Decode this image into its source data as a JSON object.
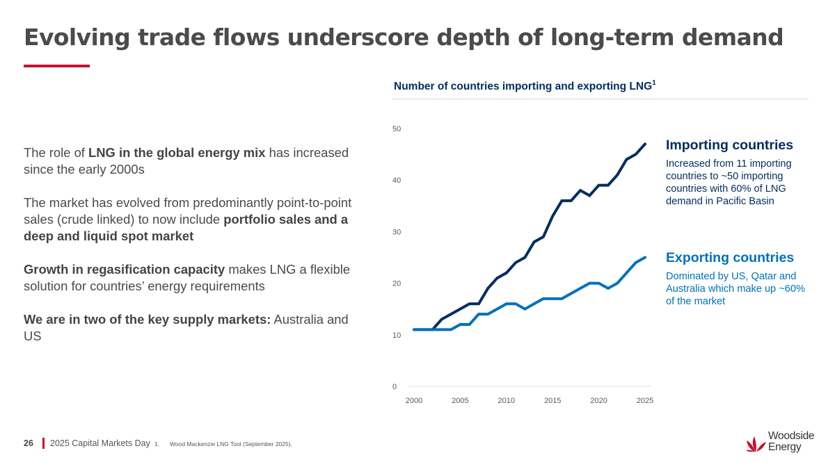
{
  "slide": {
    "title": "Evolving trade flows underscore depth of long-term demand",
    "page_number": "26",
    "event": "2025 Capital Markets Day",
    "footnote_number": "1.",
    "footnote_text": "Wood Mackenzie LNG Tool (September 2025).",
    "brand_color": "#c8102e"
  },
  "body": {
    "p1": {
      "a": "The role of ",
      "b": "LNG in the global energy mix",
      "c": " has increased since the early 2000s"
    },
    "p2": {
      "a": "The market has evolved from predominantly point-to-point sales (crude linked) to now include ",
      "b": "portfolio sales and a deep and liquid spot market"
    },
    "p3": {
      "b": "Growth in regasification capacity",
      "c": " makes LNG a flexible solution for countries’ energy requirements"
    },
    "p4": {
      "b": "We are in two of the key supply markets:",
      "c": " Australia and US"
    }
  },
  "callouts": {
    "importing": {
      "title": "Importing countries",
      "text": "Increased from 11 importing countries to ~50 importing countries with 60% of LNG demand in Pacific Basin"
    },
    "exporting": {
      "title": "Exporting countries",
      "text": "Dominated by US, Qatar and Australia which make up ~60% of the market"
    }
  },
  "logo": {
    "line1": "Woodside",
    "line2": "Energy"
  },
  "chart_data": {
    "type": "line",
    "title": "Number of countries importing and exporting LNG",
    "title_superscript": "1",
    "xlabel": "",
    "ylabel": "",
    "x": [
      2000,
      2001,
      2002,
      2003,
      2004,
      2005,
      2006,
      2007,
      2008,
      2009,
      2010,
      2011,
      2012,
      2013,
      2014,
      2015,
      2016,
      2017,
      2018,
      2019,
      2020,
      2021,
      2022,
      2023,
      2024,
      2025
    ],
    "xticks": [
      2000,
      2005,
      2010,
      2015,
      2020,
      2025
    ],
    "yticks": [
      0,
      10,
      20,
      30,
      40,
      50
    ],
    "xlim": [
      2000,
      2025
    ],
    "ylim": [
      0,
      50
    ],
    "grid": false,
    "legend": "right (callout text)",
    "series": [
      {
        "name": "Importing countries",
        "color": "#002d5f",
        "values": [
          11,
          11,
          11,
          13,
          14,
          15,
          16,
          16,
          19,
          21,
          22,
          24,
          25,
          28,
          29,
          33,
          36,
          36,
          38,
          37,
          39,
          39,
          41,
          44,
          45,
          47
        ]
      },
      {
        "name": "Exporting countries",
        "color": "#0071bc",
        "values": [
          11,
          11,
          11,
          11,
          11,
          12,
          12,
          14,
          14,
          15,
          16,
          16,
          15,
          16,
          17,
          17,
          17,
          18,
          19,
          20,
          20,
          19,
          20,
          22,
          24,
          25
        ]
      }
    ]
  }
}
